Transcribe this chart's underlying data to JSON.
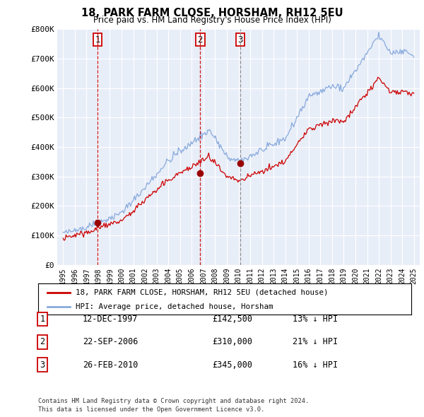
{
  "title": "18, PARK FARM CLOSE, HORSHAM, RH12 5EU",
  "subtitle": "Price paid vs. HM Land Registry's House Price Index (HPI)",
  "legend_line1": "18, PARK FARM CLOSE, HORSHAM, RH12 5EU (detached house)",
  "legend_line2": "HPI: Average price, detached house, Horsham",
  "footer1": "Contains HM Land Registry data © Crown copyright and database right 2024.",
  "footer2": "This data is licensed under the Open Government Licence v3.0.",
  "transactions": [
    {
      "num": 1,
      "date": "12-DEC-1997",
      "price": 142500,
      "pct": "13%",
      "dir": "↓",
      "x_year": 1997.95,
      "vline_color": "#cc0000"
    },
    {
      "num": 2,
      "date": "22-SEP-2006",
      "price": 310000,
      "pct": "21%",
      "dir": "↓",
      "x_year": 2006.72,
      "vline_color": "#cc0000"
    },
    {
      "num": 3,
      "date": "26-FEB-2010",
      "price": 345000,
      "pct": "16%",
      "dir": "↓",
      "x_year": 2010.15,
      "vline_color": "#888888"
    }
  ],
  "price_color": "#cc0000",
  "hpi_color": "#88aadd",
  "dashed_color": "#cc0000",
  "marker_color": "#990000",
  "background_color": "#ffffff",
  "plot_bg_color": "#e8eef8",
  "grid_color": "#ffffff",
  "ylim": [
    0,
    800000
  ],
  "xlim": [
    1994.5,
    2025.5
  ],
  "yticks": [
    0,
    100000,
    200000,
    300000,
    400000,
    500000,
    600000,
    700000,
    800000
  ],
  "ytick_labels": [
    "£0",
    "£100K",
    "£200K",
    "£300K",
    "£400K",
    "£500K",
    "£600K",
    "£700K",
    "£800K"
  ]
}
